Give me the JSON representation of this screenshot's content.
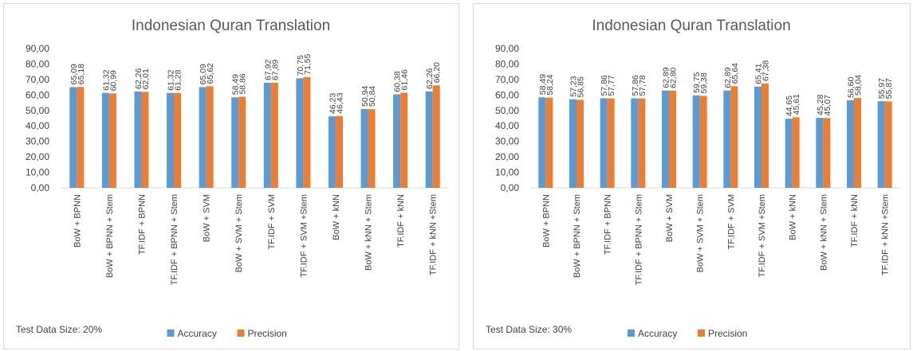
{
  "chart_data": [
    {
      "type": "bar",
      "title": "Indonesian Quran Translation",
      "annotation": "Test Data Size: 20%",
      "categories": [
        "BoW + BPNN",
        "BoW + BPNN + Stem",
        "TF.IDF + BPNN",
        "TF.IDF + BPNN + Stem",
        "BoW + SVM",
        "BoW + SVM + Stem",
        "TF.IDF + SVM",
        "TF.IDF + SVM +Stem",
        "BoW + kNN",
        "BoW + kNN + Stem",
        "TF.IDF + kNN",
        "TF.IDF + kNN +Stem"
      ],
      "series": [
        {
          "name": "Accuracy",
          "color": "#5b9bd5",
          "values": [
            65.09,
            61.32,
            62.26,
            61.32,
            65.09,
            58.49,
            67.92,
            70.75,
            46.23,
            50.94,
            60.38,
            62.26
          ],
          "value_labels": [
            "65,09",
            "61,32",
            "62,26",
            "61,32",
            "65,09",
            "58,49",
            "67,92",
            "70,75",
            "46,23",
            "50,94",
            "60,38",
            "62,26"
          ]
        },
        {
          "name": "Precision",
          "color": "#ed7d31",
          "values": [
            65.18,
            60.99,
            62.01,
            61.28,
            65.62,
            58.86,
            67.89,
            71.55,
            46.43,
            50.84,
            61.46,
            66.2
          ],
          "value_labels": [
            "65,18",
            "60,99",
            "62,01",
            "61,28",
            "65,62",
            "58,86",
            "67,89",
            "71,55",
            "46,43",
            "50,84",
            "61,46",
            "66,20"
          ]
        }
      ],
      "ylim": [
        0,
        90
      ],
      "yticks": [
        {
          "value": 0,
          "label": "0,00"
        },
        {
          "value": 10,
          "label": "10,00"
        },
        {
          "value": 20,
          "label": "20,00"
        },
        {
          "value": 30,
          "label": "30,00"
        },
        {
          "value": 40,
          "label": "40,00"
        },
        {
          "value": 50,
          "label": "50,00"
        },
        {
          "value": 60,
          "label": "60,00"
        },
        {
          "value": 70,
          "label": "70,00"
        },
        {
          "value": 80,
          "label": "80,00"
        },
        {
          "value": 90,
          "label": "90,00"
        }
      ],
      "grid": false,
      "legend": "bottom"
    },
    {
      "type": "bar",
      "title": "Indonesian Quran Translation",
      "annotation": "Test Data Size: 30%",
      "categories": [
        "BoW + BPNN",
        "BoW + BPNN + Stem",
        "TF.IDF + BPNN",
        "TF.IDF + BPNN + Stem",
        "BoW + SVM",
        "BoW + SVM + Stem",
        "TF.IDF + SVM",
        "TF.IDF + SVM +Stem",
        "BoW + kNN",
        "BoW + kNN + Stem",
        "TF.IDF + kNN",
        "TF.IDF + kNN +Stem"
      ],
      "series": [
        {
          "name": "Accuracy",
          "color": "#5b9bd5",
          "values": [
            58.49,
            57.23,
            57.86,
            57.86,
            62.89,
            59.75,
            62.89,
            65.41,
            44.65,
            45.28,
            56.6,
            55.97
          ],
          "value_labels": [
            "58,49",
            "57,23",
            "57,86",
            "57,86",
            "62,89",
            "59,75",
            "62,89",
            "65,41",
            "44,65",
            "45,28",
            "56,60",
            "55,97"
          ]
        },
        {
          "name": "Precision",
          "color": "#ed7d31",
          "values": [
            58.24,
            56.85,
            57.77,
            57.78,
            62.8,
            59.38,
            65.64,
            67.38,
            45.61,
            45.07,
            58.04,
            55.87
          ],
          "value_labels": [
            "58,24",
            "56,85",
            "57,77",
            "57,78",
            "62,80",
            "59,38",
            "65,64",
            "67,38",
            "45,61",
            "45,07",
            "58,04",
            "55,87"
          ]
        }
      ],
      "ylim": [
        0,
        90
      ],
      "yticks": [
        {
          "value": 0,
          "label": "0,00"
        },
        {
          "value": 10,
          "label": "10,00"
        },
        {
          "value": 20,
          "label": "20,00"
        },
        {
          "value": 30,
          "label": "30,00"
        },
        {
          "value": 40,
          "label": "40,00"
        },
        {
          "value": 50,
          "label": "50,00"
        },
        {
          "value": 60,
          "label": "60,00"
        },
        {
          "value": 70,
          "label": "70,00"
        },
        {
          "value": 80,
          "label": "80,00"
        },
        {
          "value": 90,
          "label": "90,00"
        }
      ],
      "grid": false,
      "legend": "bottom"
    }
  ]
}
